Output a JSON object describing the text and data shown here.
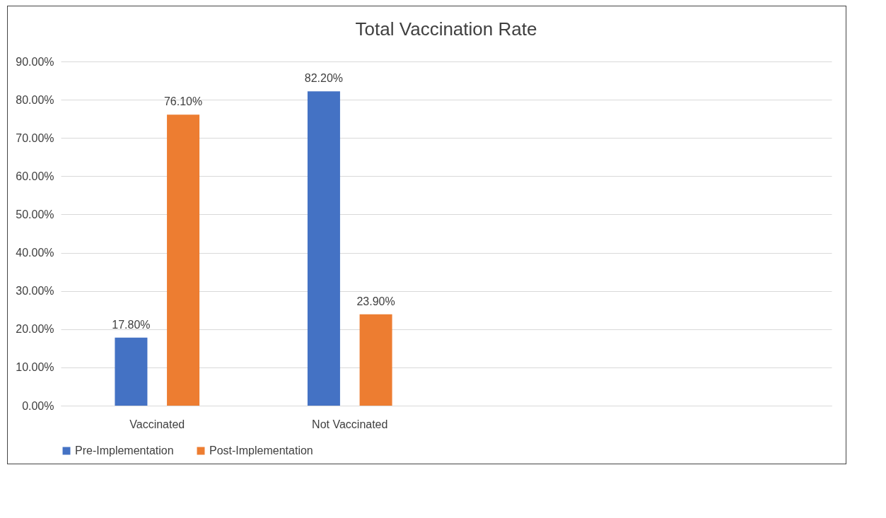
{
  "chart_data": {
    "type": "bar",
    "title": "Total Vaccination Rate",
    "categories": [
      "Vaccinated",
      "Not Vaccinated",
      null,
      null
    ],
    "series": [
      {
        "name": "Pre-Implementation",
        "color": "#4472c4",
        "values": [
          17.8,
          82.2,
          null,
          null
        ],
        "value_labels": [
          "17.80%",
          "82.20%",
          null,
          null
        ]
      },
      {
        "name": "Post-Implementation",
        "color": "#ed7d31",
        "values": [
          76.1,
          23.9,
          null,
          null
        ],
        "value_labels": [
          "76.10%",
          "23.90%",
          null,
          null
        ]
      }
    ],
    "ylim": [
      0,
      90
    ],
    "yticks": [
      {
        "value": 0,
        "label": "0.00%"
      },
      {
        "value": 10,
        "label": "10.00%"
      },
      {
        "value": 20,
        "label": "20.00%"
      },
      {
        "value": 30,
        "label": "30.00%"
      },
      {
        "value": 40,
        "label": "40.00%"
      },
      {
        "value": 50,
        "label": "50.00%"
      },
      {
        "value": 60,
        "label": "60.00%"
      },
      {
        "value": 70,
        "label": "70.00%"
      },
      {
        "value": 80,
        "label": "80.00%"
      },
      {
        "value": 90,
        "label": "90.00%"
      }
    ],
    "grid": "y",
    "legend": "bottom"
  }
}
